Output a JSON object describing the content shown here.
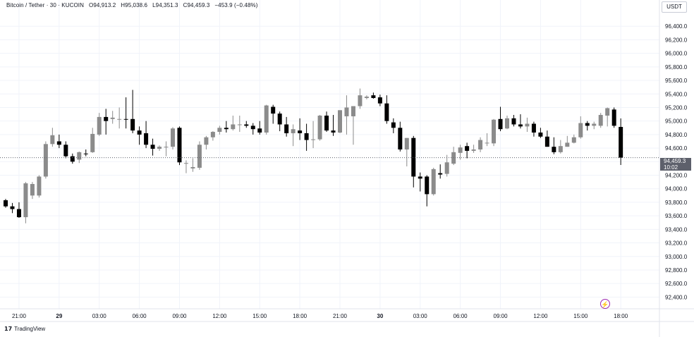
{
  "legend": {
    "symbol": "Bitcoin / Tether · 30 · KUCOIN",
    "open_label": "O",
    "open": "94,913.2",
    "high_label": "H",
    "high": "95,038.6",
    "low_label": "L",
    "low": "94,351.3",
    "close_label": "C",
    "close": "94,459.3",
    "change": "−453.9 (−0.48%)"
  },
  "currency_button": "USDT",
  "footer_logo": "TradingView",
  "logo_mark": "𝟭𝟳",
  "flash_icon": "⚡",
  "current_price": {
    "value": "94,459.3",
    "countdown": "10:02"
  },
  "colors": {
    "up": "#8b8b8b",
    "down": "#000000",
    "grid": "#f0f3fa",
    "axis_text": "#131722"
  },
  "chart_data": {
    "type": "candlestick",
    "title": "",
    "ylim": [
      92300,
      96600
    ],
    "yticks": [
      "92,400.0",
      "92,600.0",
      "92,800.0",
      "93,000.0",
      "93,200.0",
      "93,400.0",
      "93,600.0",
      "93,800.0",
      "94,000.0",
      "94,200.0",
      "94,400.0",
      "94,600.0",
      "94,800.0",
      "95,000.0",
      "95,200.0",
      "95,400.0",
      "95,600.0",
      "95,800.0",
      "96,000.0",
      "96,200.0",
      "96,400.0"
    ],
    "ytick_values": [
      92400,
      92600,
      92800,
      93000,
      93200,
      93400,
      93600,
      93800,
      94000,
      94200,
      94400,
      94600,
      94800,
      95000,
      95200,
      95400,
      95600,
      95800,
      96000,
      96200,
      96400
    ],
    "xticks": [
      {
        "label": "21:00",
        "index": 2,
        "bold": false
      },
      {
        "label": "29",
        "index": 8,
        "bold": true
      },
      {
        "label": "03:00",
        "index": 14,
        "bold": false
      },
      {
        "label": "06:00",
        "index": 20,
        "bold": false
      },
      {
        "label": "09:00",
        "index": 26,
        "bold": false
      },
      {
        "label": "12:00",
        "index": 32,
        "bold": false
      },
      {
        "label": "15:00",
        "index": 38,
        "bold": false
      },
      {
        "label": "18:00",
        "index": 44,
        "bold": false
      },
      {
        "label": "21:00",
        "index": 50,
        "bold": false
      },
      {
        "label": "30",
        "index": 56,
        "bold": true
      },
      {
        "label": "03:00",
        "index": 62,
        "bold": false
      },
      {
        "label": "06:00",
        "index": 68,
        "bold": false
      },
      {
        "label": "09:00",
        "index": 74,
        "bold": false
      },
      {
        "label": "12:00",
        "index": 80,
        "bold": false
      },
      {
        "label": "15:00",
        "index": 86,
        "bold": false
      },
      {
        "label": "18:00",
        "index": 92,
        "bold": false
      }
    ],
    "candles": [
      [
        93830,
        93850,
        93720,
        93740
      ],
      [
        93740,
        93790,
        93640,
        93700
      ],
      [
        93700,
        93800,
        93570,
        93580
      ],
      [
        93580,
        94100,
        93490,
        94080
      ],
      [
        93900,
        94100,
        93850,
        94070
      ],
      [
        93900,
        94200,
        93870,
        94180
      ],
      [
        94180,
        94700,
        94150,
        94660
      ],
      [
        94660,
        94900,
        94620,
        94790
      ],
      [
        94700,
        94800,
        94600,
        94650
      ],
      [
        94650,
        94700,
        94450,
        94480
      ],
      [
        94480,
        94520,
        94370,
        94400
      ],
      [
        94430,
        94550,
        94380,
        94540
      ],
      [
        94520,
        94580,
        94480,
        94510
      ],
      [
        94540,
        94900,
        94530,
        94810
      ],
      [
        94800,
        95120,
        94780,
        95060
      ],
      [
        95060,
        95180,
        94800,
        95000
      ],
      [
        95030,
        95150,
        94960,
        95050
      ],
      [
        95020,
        95200,
        94890,
        95030
      ],
      [
        95030,
        95350,
        94890,
        95020
      ],
      [
        95030,
        95460,
        94820,
        94860
      ],
      [
        94860,
        94920,
        94650,
        94800
      ],
      [
        94820,
        95000,
        94600,
        94650
      ],
      [
        94650,
        94740,
        94490,
        94590
      ],
      [
        94590,
        94640,
        94560,
        94620
      ],
      [
        94620,
        94700,
        94480,
        94620
      ],
      [
        94620,
        94910,
        94580,
        94890
      ],
      [
        94900,
        94920,
        94350,
        94390
      ],
      [
        94370,
        94420,
        94230,
        94380
      ],
      [
        94300,
        94450,
        94250,
        94320
      ],
      [
        94310,
        94700,
        94280,
        94650
      ],
      [
        94650,
        94780,
        94580,
        94760
      ],
      [
        94760,
        94850,
        94710,
        94840
      ],
      [
        94840,
        94930,
        94800,
        94900
      ],
      [
        94900,
        95000,
        94830,
        94880
      ],
      [
        94880,
        95080,
        94860,
        94950
      ],
      [
        94950,
        95080,
        94840,
        94950
      ],
      [
        94950,
        95000,
        94900,
        94930
      ],
      [
        94930,
        94970,
        94800,
        94880
      ],
      [
        94890,
        95000,
        94800,
        94830
      ],
      [
        94830,
        95240,
        94800,
        95230
      ],
      [
        95210,
        95240,
        94960,
        95110
      ],
      [
        95110,
        95140,
        94850,
        94950
      ],
      [
        94950,
        95060,
        94770,
        94820
      ],
      [
        94820,
        94950,
        94630,
        94880
      ],
      [
        94860,
        95040,
        94720,
        94820
      ],
      [
        94820,
        94960,
        94560,
        94720
      ],
      [
        94730,
        95000,
        94600,
        94730
      ],
      [
        94730,
        95090,
        94710,
        95080
      ],
      [
        95080,
        95140,
        94840,
        94860
      ],
      [
        94860,
        95090,
        94780,
        94830
      ],
      [
        94830,
        95160,
        94820,
        95160
      ],
      [
        95070,
        95380,
        94800,
        95200
      ],
      [
        95070,
        95210,
        94650,
        95220
      ],
      [
        95220,
        95480,
        95180,
        95380
      ],
      [
        95340,
        95380,
        95320,
        95360
      ],
      [
        95380,
        95420,
        95330,
        95340
      ],
      [
        95350,
        95390,
        95220,
        95260
      ],
      [
        95260,
        95380,
        94960,
        95000
      ],
      [
        94980,
        95040,
        94820,
        94900
      ],
      [
        94900,
        94990,
        94550,
        94580
      ],
      [
        94580,
        94750,
        94330,
        94750
      ],
      [
        94750,
        94780,
        94020,
        94180
      ],
      [
        94180,
        94240,
        93960,
        94150
      ],
      [
        94180,
        94200,
        93740,
        93920
      ],
      [
        93920,
        94310,
        93900,
        94290
      ],
      [
        94230,
        94360,
        94150,
        94210
      ],
      [
        94220,
        94500,
        94180,
        94390
      ],
      [
        94370,
        94620,
        94350,
        94540
      ],
      [
        94530,
        94650,
        94430,
        94610
      ],
      [
        94630,
        94680,
        94450,
        94560
      ],
      [
        94560,
        94650,
        94530,
        94580
      ],
      [
        94580,
        94760,
        94540,
        94720
      ],
      [
        94680,
        94820,
        94630,
        94680
      ],
      [
        94670,
        95030,
        94630,
        95020
      ],
      [
        95030,
        95210,
        94850,
        94880
      ],
      [
        94890,
        95080,
        94880,
        95040
      ],
      [
        95040,
        95090,
        94920,
        94950
      ],
      [
        94950,
        95100,
        94890,
        94920
      ],
      [
        94920,
        95050,
        94840,
        94960
      ],
      [
        94960,
        94990,
        94770,
        94830
      ],
      [
        94830,
        94900,
        94750,
        94770
      ],
      [
        94770,
        94860,
        94620,
        94620
      ],
      [
        94620,
        94760,
        94510,
        94540
      ],
      [
        94540,
        94720,
        94520,
        94630
      ],
      [
        94620,
        94780,
        94620,
        94680
      ],
      [
        94680,
        94800,
        94670,
        94760
      ],
      [
        94760,
        95070,
        94740,
        94970
      ],
      [
        94970,
        95000,
        94860,
        94930
      ],
      [
        94930,
        94990,
        94880,
        94960
      ],
      [
        94930,
        95120,
        94900,
        95090
      ],
      [
        95080,
        95200,
        94920,
        95190
      ],
      [
        95170,
        95200,
        94900,
        94930
      ],
      [
        94913,
        95039,
        94351,
        94459
      ]
    ]
  }
}
